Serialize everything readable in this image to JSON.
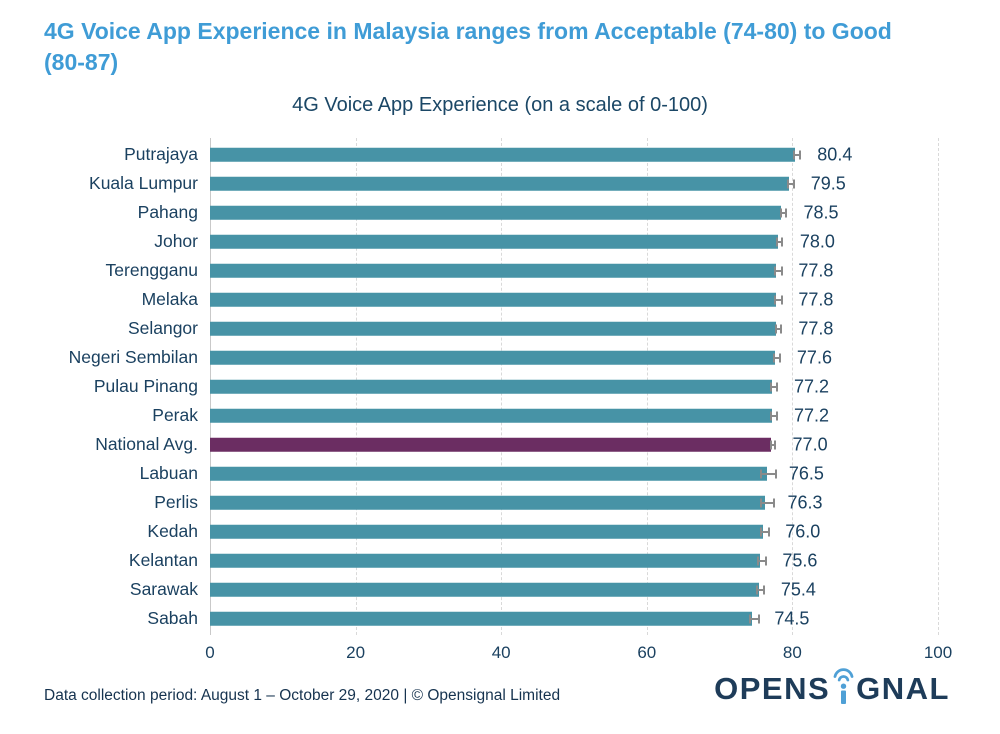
{
  "headline": "4G Voice App Experience in Malaysia ranges from Acceptable (74-80) to Good (80-87)",
  "footer": "Data collection period: August 1 – October 29, 2020 | © Opensignal Limited",
  "logo": {
    "prefix": "OPENS",
    "suffix": "GNAL",
    "icon": "wifi-signal-i-icon",
    "text_color": "#1E3C59",
    "icon_color": "#4FA0D6"
  },
  "colors": {
    "headline": "#3F9CD6",
    "bar": "#4793A6",
    "highlight_bar": "#6B2D62",
    "chart_text": "#1B4160",
    "gridline": "#d9d9d9"
  },
  "chart_data": {
    "type": "bar",
    "orientation": "horizontal",
    "title": "4G Voice App Experience (on a scale of 0-100)",
    "xlabel": "",
    "ylabel": "",
    "xlim": [
      0,
      100
    ],
    "xticks": [
      0,
      20,
      40,
      60,
      80,
      100
    ],
    "grid": "vertical-dashed",
    "error_bars": true,
    "legend": "none",
    "categories": [
      "Putrajaya",
      "Kuala Lumpur",
      "Pahang",
      "Johor",
      "Terengganu",
      "Melaka",
      "Selangor",
      "Negeri Sembilan",
      "Pulau Pinang",
      "Perak",
      "National Avg.",
      "Labuan",
      "Perlis",
      "Kedah",
      "Kelantan",
      "Sarawak",
      "Sabah"
    ],
    "values": [
      80.4,
      79.5,
      78.5,
      78.0,
      77.8,
      77.8,
      77.8,
      77.6,
      77.2,
      77.2,
      77.0,
      76.5,
      76.3,
      76.0,
      75.6,
      75.4,
      74.5
    ],
    "errors": [
      0.3,
      0.25,
      0.25,
      0.2,
      0.3,
      0.3,
      0.2,
      0.3,
      0.3,
      0.25,
      0.12,
      0.9,
      0.75,
      0.4,
      0.4,
      0.35,
      0.45
    ],
    "highlight_index": 10
  }
}
